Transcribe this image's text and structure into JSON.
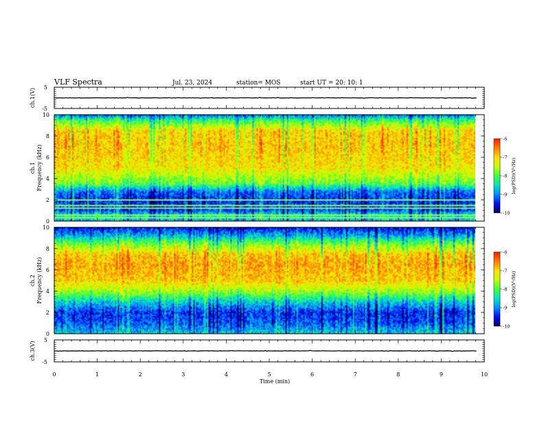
{
  "header": {
    "title": "VLF Spectra",
    "date": "Jul. 23, 2024",
    "station": "station= MOS",
    "start": "start  UT =   20: 10: 1"
  },
  "colors": {
    "colormap": [
      "#000066",
      "#0010ff",
      "#0090ff",
      "#00e8c0",
      "#40ff40",
      "#c8ff00",
      "#ffe000",
      "#ff8000",
      "#ff2000"
    ],
    "trace": "#000000",
    "line_artifact": "#90ff60"
  },
  "chart_data": [
    {
      "type": "line",
      "name": "ch1-waveform",
      "ylabel": "ch.1(V)",
      "ylim": [
        -5,
        5
      ],
      "yticks": [
        "5",
        "-5"
      ],
      "xlim": [
        0,
        10
      ],
      "trace_level": 0
    },
    {
      "type": "heatmap",
      "name": "ch1-spectrogram",
      "ylabel": "ch.1\nFrequency (kHz)",
      "ylim": [
        0,
        10
      ],
      "yticks": [
        "0",
        "2",
        "4",
        "6",
        "8",
        "10"
      ],
      "xlim": [
        0,
        10
      ],
      "data_end": 9.82,
      "colorbar": {
        "label": "log(PSD)(V²/Hz)",
        "ticks": [
          "-6",
          "-7",
          "-8",
          "-9",
          "-10"
        ],
        "range": [
          -10,
          -6
        ]
      },
      "band_profile": [
        {
          "f": 0.0,
          "level": -8.8
        },
        {
          "f": 0.5,
          "level": -8.4
        },
        {
          "f": 1.0,
          "level": -9.3
        },
        {
          "f": 2.0,
          "level": -9.4
        },
        {
          "f": 2.8,
          "level": -9.1
        },
        {
          "f": 3.5,
          "level": -7.9
        },
        {
          "f": 5.0,
          "level": -7.1
        },
        {
          "f": 7.0,
          "level": -6.9
        },
        {
          "f": 8.5,
          "level": -7.0
        },
        {
          "f": 9.5,
          "level": -8.2
        },
        {
          "f": 10.0,
          "level": -9.2
        }
      ],
      "line_frequencies": [
        0.4,
        0.65,
        1.3,
        1.6,
        2.05
      ]
    },
    {
      "type": "heatmap",
      "name": "ch2-spectrogram",
      "ylabel": "ch.2\nFrequency (kHz)",
      "ylim": [
        0,
        10
      ],
      "yticks": [
        "0",
        "2",
        "4",
        "6",
        "8",
        "10"
      ],
      "xlim": [
        0,
        10
      ],
      "data_end": 9.82,
      "colorbar": {
        "label": "log(PSD)(V²/Hz)",
        "ticks": [
          "-6",
          "-7",
          "-8",
          "-9",
          "-10"
        ],
        "range": [
          -10,
          -6
        ]
      },
      "band_profile": [
        {
          "f": 0.0,
          "level": -8.6
        },
        {
          "f": 1.0,
          "level": -9.2
        },
        {
          "f": 2.0,
          "level": -9.4
        },
        {
          "f": 3.0,
          "level": -8.6
        },
        {
          "f": 4.0,
          "level": -7.6
        },
        {
          "f": 5.0,
          "level": -6.9
        },
        {
          "f": 6.5,
          "level": -6.7
        },
        {
          "f": 7.5,
          "level": -6.9
        },
        {
          "f": 8.5,
          "level": -7.9
        },
        {
          "f": 9.3,
          "level": -8.9
        },
        {
          "f": 10.0,
          "level": -9.6
        }
      ],
      "line_frequencies": []
    },
    {
      "type": "line",
      "name": "ch3-waveform",
      "ylabel": "ch.3(V)",
      "ylim": [
        -5,
        5
      ],
      "yticks": [
        "5",
        "-5"
      ],
      "xlim": [
        0,
        10
      ],
      "trace_level": 0
    }
  ],
  "xaxis": {
    "label": "Time  (min)",
    "ticks": [
      "0",
      "1",
      "2",
      "3",
      "4",
      "5",
      "6",
      "7",
      "8",
      "9",
      "10"
    ],
    "range": [
      0,
      10
    ]
  }
}
